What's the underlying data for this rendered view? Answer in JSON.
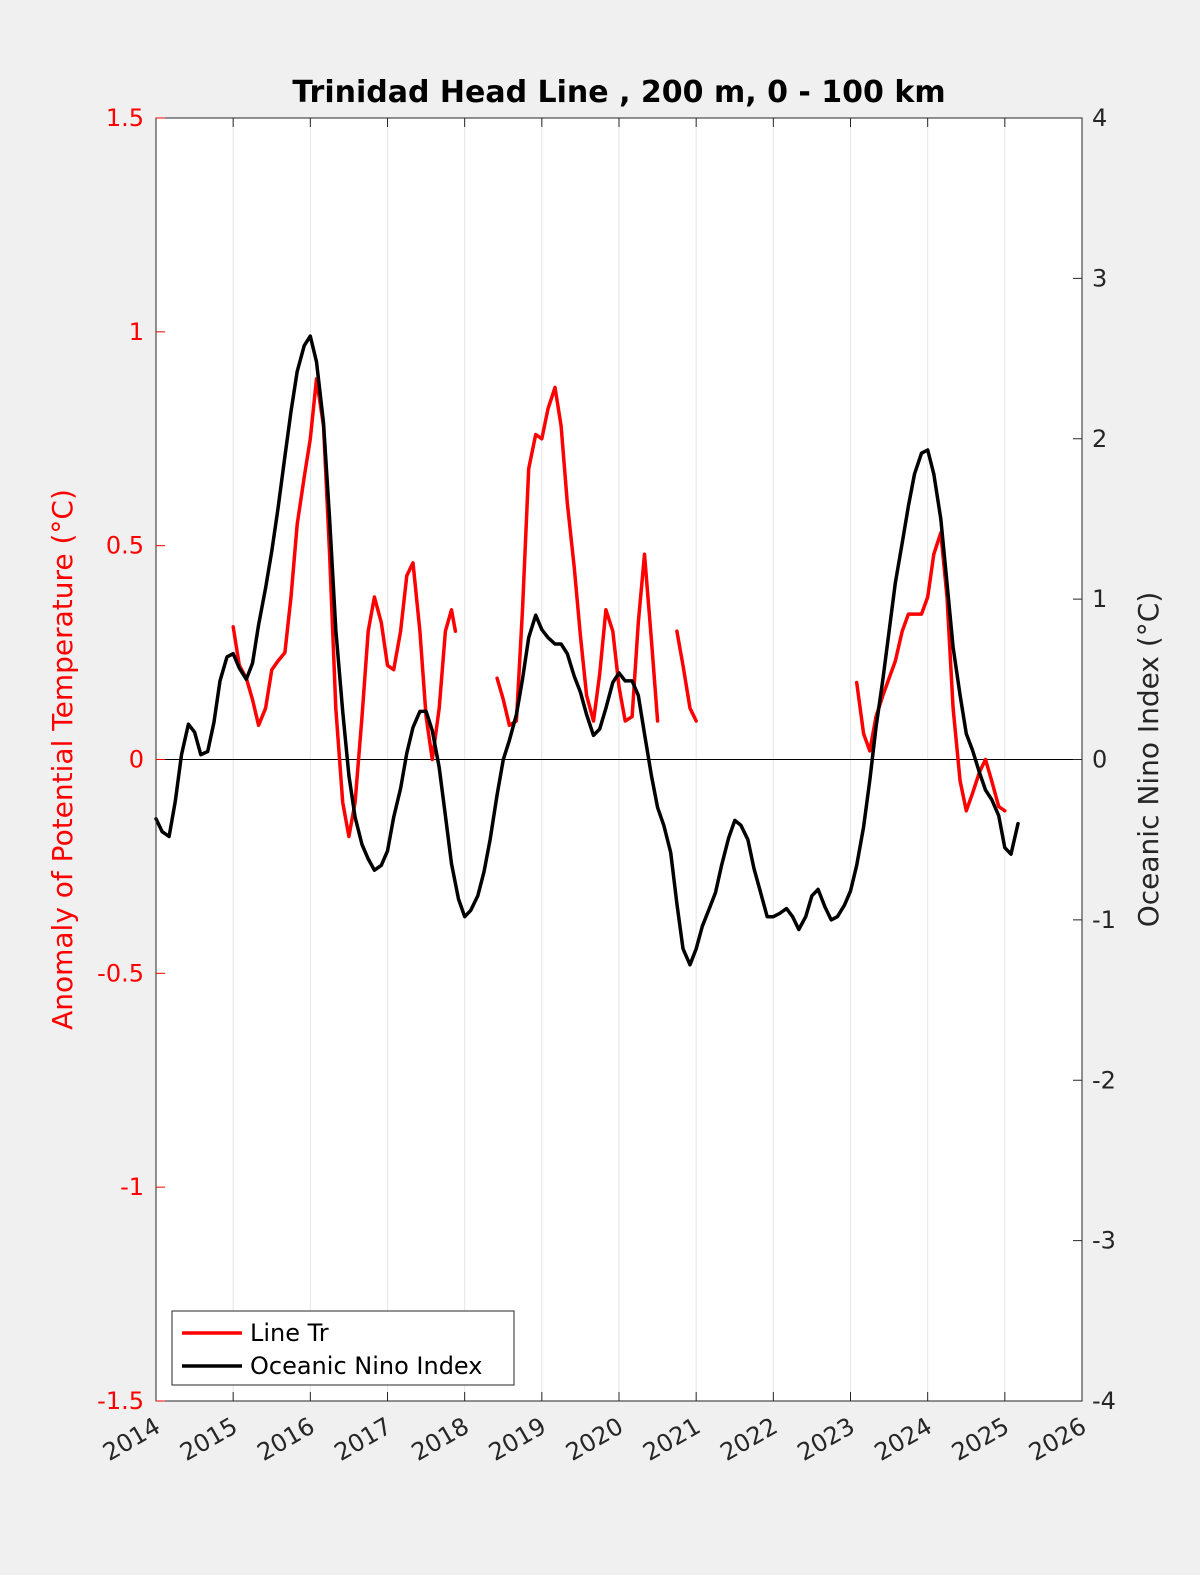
{
  "chart_data": {
    "type": "line",
    "title": "Trinidad Head Line , 200 m, 0 - 100 km",
    "xlim": [
      2014,
      2026
    ],
    "x_ticks": [
      "2014",
      "2015",
      "2016",
      "2017",
      "2018",
      "2019",
      "2020",
      "2021",
      "2022",
      "2023",
      "2024",
      "2025",
      "2026"
    ],
    "y_left": {
      "label": "Anomaly of Potential Temperature (°C)",
      "lim": [
        -1.5,
        1.5
      ],
      "ticks": [
        "-1.5",
        "-1",
        "-0.5",
        "0",
        "0.5",
        "1",
        "1.5"
      ],
      "color": "#ff0000"
    },
    "y_right": {
      "label": "Oceanic Nino Index (°C)",
      "lim": [
        -4,
        4
      ],
      "ticks": [
        "-4",
        "-3",
        "-2",
        "-1",
        "0",
        "1",
        "2",
        "3",
        "4"
      ],
      "color": "#262626"
    },
    "grid": "vertical",
    "legend_position": "bottom-left",
    "series": [
      {
        "name": "Line Tr",
        "axis": "left",
        "color": "#ff0000",
        "segments": [
          [
            [
              2015.0,
              0.31
            ],
            [
              2015.08,
              0.22
            ],
            [
              2015.17,
              0.19
            ],
            [
              2015.25,
              0.14
            ],
            [
              2015.33,
              0.08
            ],
            [
              2015.42,
              0.12
            ],
            [
              2015.5,
              0.21
            ],
            [
              2015.58,
              0.23
            ],
            [
              2015.67,
              0.25
            ],
            [
              2015.75,
              0.38
            ],
            [
              2015.83,
              0.55
            ],
            [
              2015.92,
              0.66
            ],
            [
              2016.0,
              0.75
            ],
            [
              2016.08,
              0.89
            ],
            [
              2016.17,
              0.78
            ],
            [
              2016.25,
              0.48
            ],
            [
              2016.33,
              0.12
            ],
            [
              2016.42,
              -0.1
            ],
            [
              2016.5,
              -0.18
            ],
            [
              2016.58,
              -0.1
            ],
            [
              2016.67,
              0.1
            ],
            [
              2016.75,
              0.3
            ],
            [
              2016.83,
              0.38
            ],
            [
              2016.92,
              0.32
            ],
            [
              2017.0,
              0.22
            ],
            [
              2017.08,
              0.21
            ],
            [
              2017.17,
              0.3
            ],
            [
              2017.25,
              0.43
            ],
            [
              2017.33,
              0.46
            ],
            [
              2017.42,
              0.3
            ],
            [
              2017.5,
              0.1
            ],
            [
              2017.58,
              0.0
            ],
            [
              2017.67,
              0.12
            ],
            [
              2017.75,
              0.3
            ],
            [
              2017.83,
              0.35
            ],
            [
              2017.88,
              0.3
            ]
          ],
          [
            [
              2018.42,
              0.19
            ],
            [
              2018.5,
              0.14
            ],
            [
              2018.58,
              0.08
            ],
            [
              2018.67,
              0.09
            ],
            [
              2018.75,
              0.35
            ],
            [
              2018.83,
              0.68
            ],
            [
              2018.92,
              0.76
            ],
            [
              2019.0,
              0.75
            ],
            [
              2019.08,
              0.82
            ],
            [
              2019.17,
              0.87
            ],
            [
              2019.25,
              0.78
            ],
            [
              2019.33,
              0.6
            ],
            [
              2019.42,
              0.45
            ],
            [
              2019.5,
              0.29
            ],
            [
              2019.58,
              0.15
            ],
            [
              2019.67,
              0.09
            ],
            [
              2019.75,
              0.2
            ],
            [
              2019.83,
              0.35
            ],
            [
              2019.92,
              0.3
            ],
            [
              2020.0,
              0.17
            ],
            [
              2020.08,
              0.09
            ],
            [
              2020.17,
              0.1
            ],
            [
              2020.25,
              0.32
            ],
            [
              2020.33,
              0.48
            ],
            [
              2020.42,
              0.28
            ],
            [
              2020.5,
              0.09
            ]
          ],
          [
            [
              2020.75,
              0.3
            ],
            [
              2020.83,
              0.22
            ],
            [
              2020.92,
              0.12
            ],
            [
              2021.0,
              0.09
            ]
          ],
          [
            [
              2023.08,
              0.18
            ],
            [
              2023.17,
              0.06
            ],
            [
              2023.25,
              0.02
            ],
            [
              2023.33,
              0.1
            ],
            [
              2023.42,
              0.15
            ],
            [
              2023.5,
              0.19
            ],
            [
              2023.58,
              0.23
            ],
            [
              2023.67,
              0.3
            ],
            [
              2023.75,
              0.34
            ],
            [
              2023.83,
              0.34
            ],
            [
              2023.92,
              0.34
            ],
            [
              2024.0,
              0.38
            ],
            [
              2024.08,
              0.48
            ],
            [
              2024.17,
              0.53
            ],
            [
              2024.25,
              0.38
            ],
            [
              2024.33,
              0.12
            ],
            [
              2024.42,
              -0.05
            ],
            [
              2024.5,
              -0.12
            ],
            [
              2024.58,
              -0.08
            ],
            [
              2024.67,
              -0.03
            ],
            [
              2024.75,
              0.0
            ],
            [
              2024.83,
              -0.05
            ],
            [
              2024.92,
              -0.11
            ],
            [
              2025.0,
              -0.12
            ]
          ]
        ]
      },
      {
        "name": "Oceanic Nino Index",
        "axis": "right",
        "color": "#000000",
        "segments": [
          [
            [
              2014.0,
              -0.37
            ],
            [
              2014.08,
              -0.45
            ],
            [
              2014.17,
              -0.48
            ],
            [
              2014.25,
              -0.26
            ],
            [
              2014.33,
              0.03
            ],
            [
              2014.42,
              0.22
            ],
            [
              2014.5,
              0.17
            ],
            [
              2014.58,
              0.03
            ],
            [
              2014.67,
              0.05
            ],
            [
              2014.75,
              0.23
            ],
            [
              2014.83,
              0.49
            ],
            [
              2014.92,
              0.64
            ],
            [
              2015.0,
              0.66
            ],
            [
              2015.08,
              0.57
            ],
            [
              2015.17,
              0.5
            ],
            [
              2015.25,
              0.6
            ],
            [
              2015.33,
              0.84
            ],
            [
              2015.42,
              1.07
            ],
            [
              2015.5,
              1.3
            ],
            [
              2015.58,
              1.56
            ],
            [
              2015.67,
              1.89
            ],
            [
              2015.75,
              2.17
            ],
            [
              2015.83,
              2.42
            ],
            [
              2015.92,
              2.58
            ],
            [
              2016.0,
              2.64
            ],
            [
              2016.08,
              2.48
            ],
            [
              2016.17,
              2.1
            ],
            [
              2016.25,
              1.5
            ],
            [
              2016.33,
              0.81
            ],
            [
              2016.42,
              0.3
            ],
            [
              2016.5,
              -0.1
            ],
            [
              2016.58,
              -0.36
            ],
            [
              2016.67,
              -0.53
            ],
            [
              2016.75,
              -0.62
            ],
            [
              2016.83,
              -0.69
            ],
            [
              2016.92,
              -0.66
            ],
            [
              2017.0,
              -0.57
            ],
            [
              2017.08,
              -0.36
            ],
            [
              2017.17,
              -0.18
            ],
            [
              2017.25,
              0.04
            ],
            [
              2017.33,
              0.2
            ],
            [
              2017.42,
              0.3
            ],
            [
              2017.5,
              0.3
            ],
            [
              2017.58,
              0.18
            ],
            [
              2017.67,
              -0.05
            ],
            [
              2017.75,
              -0.35
            ],
            [
              2017.83,
              -0.65
            ],
            [
              2017.92,
              -0.87
            ],
            [
              2018.0,
              -0.98
            ],
            [
              2018.08,
              -0.94
            ],
            [
              2018.17,
              -0.85
            ],
            [
              2018.25,
              -0.7
            ],
            [
              2018.33,
              -0.5
            ],
            [
              2018.42,
              -0.22
            ],
            [
              2018.5,
              0.0
            ],
            [
              2018.58,
              0.12
            ],
            [
              2018.67,
              0.28
            ],
            [
              2018.75,
              0.5
            ],
            [
              2018.83,
              0.76
            ],
            [
              2018.92,
              0.9
            ],
            [
              2019.0,
              0.81
            ],
            [
              2019.08,
              0.76
            ],
            [
              2019.17,
              0.72
            ],
            [
              2019.25,
              0.72
            ],
            [
              2019.33,
              0.66
            ],
            [
              2019.42,
              0.52
            ],
            [
              2019.5,
              0.42
            ],
            [
              2019.58,
              0.28
            ],
            [
              2019.67,
              0.15
            ],
            [
              2019.75,
              0.19
            ],
            [
              2019.83,
              0.32
            ],
            [
              2019.92,
              0.48
            ],
            [
              2020.0,
              0.54
            ],
            [
              2020.08,
              0.49
            ],
            [
              2020.17,
              0.49
            ],
            [
              2020.25,
              0.4
            ],
            [
              2020.33,
              0.16
            ],
            [
              2020.42,
              -0.1
            ],
            [
              2020.5,
              -0.3
            ],
            [
              2020.58,
              -0.41
            ],
            [
              2020.67,
              -0.58
            ],
            [
              2020.75,
              -0.9
            ],
            [
              2020.83,
              -1.18
            ],
            [
              2020.92,
              -1.28
            ],
            [
              2021.0,
              -1.18
            ],
            [
              2021.08,
              -1.04
            ],
            [
              2021.17,
              -0.93
            ],
            [
              2021.25,
              -0.83
            ],
            [
              2021.33,
              -0.66
            ],
            [
              2021.42,
              -0.49
            ],
            [
              2021.5,
              -0.38
            ],
            [
              2021.58,
              -0.41
            ],
            [
              2021.67,
              -0.5
            ],
            [
              2021.75,
              -0.68
            ],
            [
              2021.83,
              -0.82
            ],
            [
              2021.92,
              -0.98
            ],
            [
              2022.0,
              -0.98
            ],
            [
              2022.08,
              -0.96
            ],
            [
              2022.17,
              -0.93
            ],
            [
              2022.25,
              -0.98
            ],
            [
              2022.33,
              -1.06
            ],
            [
              2022.42,
              -0.98
            ],
            [
              2022.5,
              -0.85
            ],
            [
              2022.58,
              -0.81
            ],
            [
              2022.67,
              -0.92
            ],
            [
              2022.75,
              -1.0
            ],
            [
              2022.83,
              -0.98
            ],
            [
              2022.92,
              -0.91
            ],
            [
              2023.0,
              -0.82
            ],
            [
              2023.08,
              -0.66
            ],
            [
              2023.17,
              -0.42
            ],
            [
              2023.25,
              -0.13
            ],
            [
              2023.33,
              0.2
            ],
            [
              2023.42,
              0.5
            ],
            [
              2023.5,
              0.8
            ],
            [
              2023.58,
              1.1
            ],
            [
              2023.67,
              1.35
            ],
            [
              2023.75,
              1.58
            ],
            [
              2023.83,
              1.78
            ],
            [
              2023.92,
              1.91
            ],
            [
              2024.0,
              1.93
            ],
            [
              2024.08,
              1.78
            ],
            [
              2024.17,
              1.5
            ],
            [
              2024.25,
              1.1
            ],
            [
              2024.33,
              0.7
            ],
            [
              2024.42,
              0.4
            ],
            [
              2024.5,
              0.16
            ],
            [
              2024.58,
              0.06
            ],
            [
              2024.67,
              -0.08
            ],
            [
              2024.75,
              -0.19
            ],
            [
              2024.83,
              -0.25
            ],
            [
              2024.92,
              -0.35
            ],
            [
              2025.0,
              -0.55
            ],
            [
              2025.08,
              -0.59
            ],
            [
              2025.17,
              -0.4
            ]
          ]
        ]
      }
    ]
  },
  "legend": {
    "items": [
      {
        "label": "Line Tr",
        "color": "#ff0000"
      },
      {
        "label": "Oceanic Nino Index",
        "color": "#000000"
      }
    ]
  }
}
